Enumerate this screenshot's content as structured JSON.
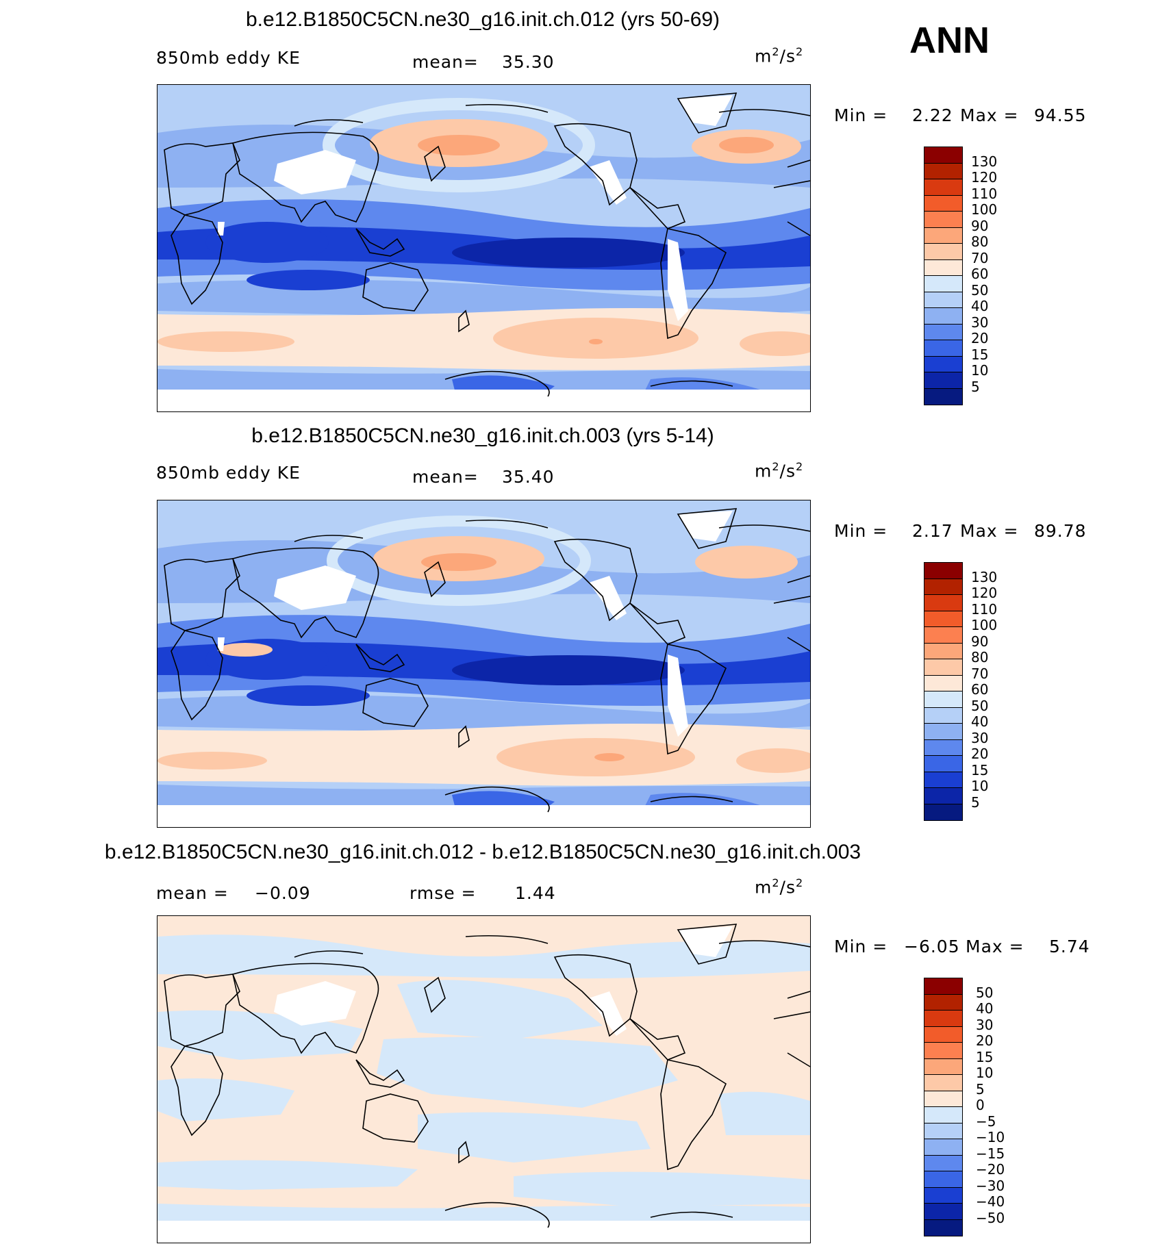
{
  "season": "ANN",
  "unit_base": "m",
  "unit_exp": "2",
  "unit_den": "s",
  "panels": [
    {
      "title": "b.e12.B1850C5CN.ne30_g16.init.ch.012 (yrs 50-69)",
      "left_label": "850mb eddy KE",
      "stat_label": "mean=",
      "stat_value": "35.30",
      "minmax": {
        "min_label": "Min =",
        "min_value": "2.22",
        "max_label": "Max =",
        "max_value": "94.55"
      },
      "colorbar": {
        "levels": [
          "130",
          "120",
          "110",
          "100",
          "90",
          "80",
          "70",
          "60",
          "50",
          "40",
          "30",
          "20",
          "15",
          "10",
          "5"
        ],
        "colors": [
          "#8B0000",
          "#B22200",
          "#D93A10",
          "#F25C2A",
          "#FC8050",
          "#FCA77A",
          "#FDC9A8",
          "#FDE8D8",
          "#D5E8FA",
          "#B5D0F7",
          "#8EB1F2",
          "#5E88EE",
          "#3A66E6",
          "#1A3FD2",
          "#0C25A8",
          "#061A80"
        ]
      }
    },
    {
      "title": "b.e12.B1850C5CN.ne30_g16.init.ch.003 (yrs 5-14)",
      "left_label": "850mb eddy KE",
      "stat_label": "mean=",
      "stat_value": "35.40",
      "minmax": {
        "min_label": "Min =",
        "min_value": "2.17",
        "max_label": "Max =",
        "max_value": "89.78"
      },
      "colorbar": {
        "levels": [
          "130",
          "120",
          "110",
          "100",
          "90",
          "80",
          "70",
          "60",
          "50",
          "40",
          "30",
          "20",
          "15",
          "10",
          "5"
        ],
        "colors": [
          "#8B0000",
          "#B22200",
          "#D93A10",
          "#F25C2A",
          "#FC8050",
          "#FCA77A",
          "#FDC9A8",
          "#FDE8D8",
          "#D5E8FA",
          "#B5D0F7",
          "#8EB1F2",
          "#5E88EE",
          "#3A66E6",
          "#1A3FD2",
          "#0C25A8",
          "#061A80"
        ]
      }
    },
    {
      "title": "b.e12.B1850C5CN.ne30_g16.init.ch.012 - b.e12.B1850C5CN.ne30_g16.init.ch.003",
      "left_label": "mean =",
      "left_value": "−0.09",
      "stat_label": "rmse =",
      "stat_value": "1.44",
      "minmax": {
        "min_label": "Min =",
        "min_value": "−6.05",
        "max_label": "Max =",
        "max_value": "5.74"
      },
      "colorbar": {
        "levels": [
          "50",
          "40",
          "30",
          "20",
          "15",
          "10",
          "5",
          "0",
          "−5",
          "−10",
          "−15",
          "−20",
          "−30",
          "−40",
          "−50"
        ],
        "colors": [
          "#8B0000",
          "#B22200",
          "#D93A10",
          "#F25C2A",
          "#FC8050",
          "#FCA77A",
          "#FDC9A8",
          "#FDE8D8",
          "#D5E8FA",
          "#B5D0F7",
          "#8EB1F2",
          "#5E88EE",
          "#3A66E6",
          "#1A3FD2",
          "#0C25A8",
          "#061A80"
        ]
      }
    }
  ]
}
